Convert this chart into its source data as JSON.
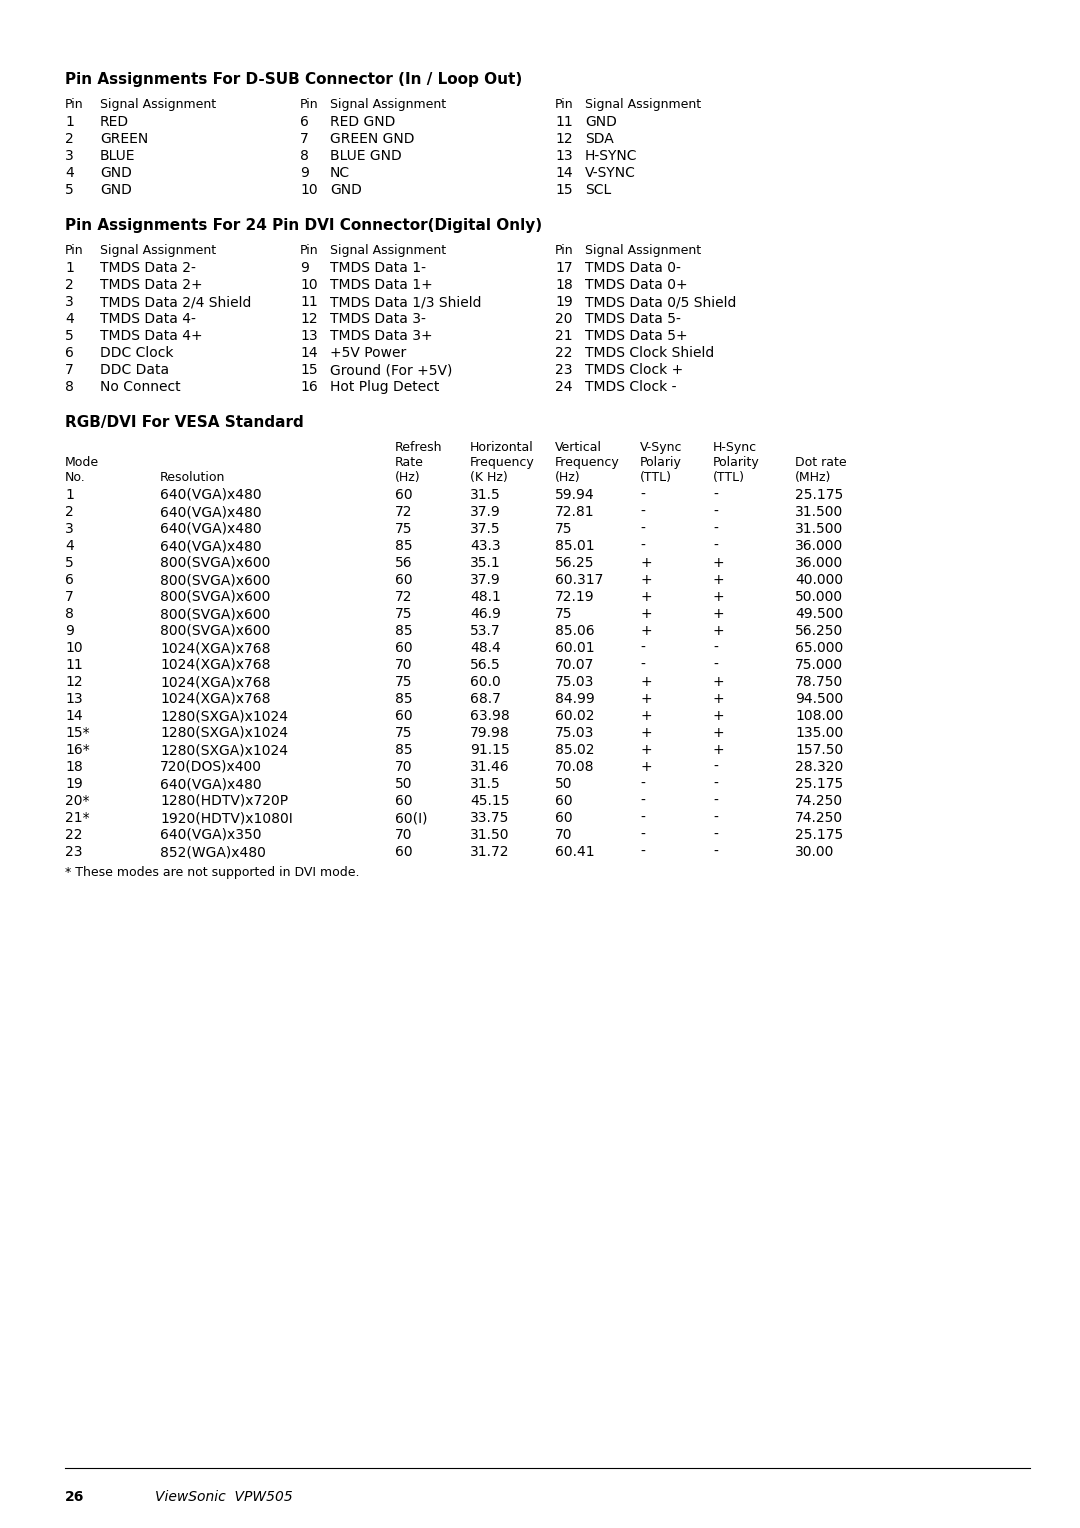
{
  "bg_color": "#ffffff",
  "text_color": "#000000",
  "page_width": 10.8,
  "page_height": 15.28,
  "dpi": 100,
  "section1_title": "Pin Assignments For D-SUB Connector (In / Loop Out)",
  "dsub_rows": [
    [
      "1",
      "RED",
      "6",
      "RED GND",
      "11",
      "GND"
    ],
    [
      "2",
      "GREEN",
      "7",
      "GREEN GND",
      "12",
      "SDA"
    ],
    [
      "3",
      "BLUE",
      "8",
      "BLUE GND",
      "13",
      "H-SYNC"
    ],
    [
      "4",
      "GND",
      "9",
      "NC",
      "14",
      "V-SYNC"
    ],
    [
      "5",
      "GND",
      "10",
      "GND",
      "15",
      "SCL"
    ]
  ],
  "section2_title": "Pin Assignments For 24 Pin DVI Connector(Digital Only)",
  "dvi_rows": [
    [
      "1",
      "TMDS Data 2-",
      "9",
      "TMDS Data 1-",
      "17",
      "TMDS Data 0-"
    ],
    [
      "2",
      "TMDS Data 2+",
      "10",
      "TMDS Data 1+",
      "18",
      "TMDS Data 0+"
    ],
    [
      "3",
      "TMDS Data 2/4 Shield",
      "11",
      "TMDS Data 1/3 Shield",
      "19",
      "TMDS Data 0/5 Shield"
    ],
    [
      "4",
      "TMDS Data 4-",
      "12",
      "TMDS Data 3-",
      "20",
      "TMDS Data 5-"
    ],
    [
      "5",
      "TMDS Data 4+",
      "13",
      "TMDS Data 3+",
      "21",
      "TMDS Data 5+"
    ],
    [
      "6",
      "DDC Clock",
      "14",
      "+5V Power",
      "22",
      "TMDS Clock Shield"
    ],
    [
      "7",
      "DDC Data",
      "15",
      "Ground (For +5V)",
      "23",
      "TMDS Clock +"
    ],
    [
      "8",
      "No Connect",
      "16",
      "Hot Plug Detect",
      "24",
      "TMDS Clock -"
    ]
  ],
  "section3_title": "RGB/DVI For VESA Standard",
  "vesa_rows": [
    [
      "1",
      "640(VGA)x480",
      "60",
      "31.5",
      "59.94",
      "-",
      "-",
      "25.175"
    ],
    [
      "2",
      "640(VGA)x480",
      "72",
      "37.9",
      "72.81",
      "-",
      "-",
      "31.500"
    ],
    [
      "3",
      "640(VGA)x480",
      "75",
      "37.5",
      "75",
      "-",
      "-",
      "31.500"
    ],
    [
      "4",
      "640(VGA)x480",
      "85",
      "43.3",
      "85.01",
      "-",
      "-",
      "36.000"
    ],
    [
      "5",
      "800(SVGA)x600",
      "56",
      "35.1",
      "56.25",
      "+",
      "+",
      "36.000"
    ],
    [
      "6",
      "800(SVGA)x600",
      "60",
      "37.9",
      "60.317",
      "+",
      "+",
      "40.000"
    ],
    [
      "7",
      "800(SVGA)x600",
      "72",
      "48.1",
      "72.19",
      "+",
      "+",
      "50.000"
    ],
    [
      "8",
      "800(SVGA)x600",
      "75",
      "46.9",
      "75",
      "+",
      "+",
      "49.500"
    ],
    [
      "9",
      "800(SVGA)x600",
      "85",
      "53.7",
      "85.06",
      "+",
      "+",
      "56.250"
    ],
    [
      "10",
      "1024(XGA)x768",
      "60",
      "48.4",
      "60.01",
      "-",
      "-",
      "65.000"
    ],
    [
      "11",
      "1024(XGA)x768",
      "70",
      "56.5",
      "70.07",
      "-",
      "-",
      "75.000"
    ],
    [
      "12",
      "1024(XGA)x768",
      "75",
      "60.0",
      "75.03",
      "+",
      "+",
      "78.750"
    ],
    [
      "13",
      "1024(XGA)x768",
      "85",
      "68.7",
      "84.99",
      "+",
      "+",
      "94.500"
    ],
    [
      "14",
      "1280(SXGA)x1024",
      "60",
      "63.98",
      "60.02",
      "+",
      "+",
      "108.00"
    ],
    [
      "15*",
      "1280(SXGA)x1024",
      "75",
      "79.98",
      "75.03",
      "+",
      "+",
      "135.00"
    ],
    [
      "16*",
      "1280(SXGA)x1024",
      "85",
      "91.15",
      "85.02",
      "+",
      "+",
      "157.50"
    ],
    [
      "18",
      "720(DOS)x400",
      "70",
      "31.46",
      "70.08",
      "+",
      "-",
      "28.320"
    ],
    [
      "19",
      "640(VGA)x480",
      "50",
      "31.5",
      "50",
      "-",
      "-",
      "25.175"
    ],
    [
      "20*",
      "1280(HDTV)x720P",
      "60",
      "45.15",
      "60",
      "-",
      "-",
      "74.250"
    ],
    [
      "21*",
      "1920(HDTV)x1080I",
      "60(I)",
      "33.75",
      "60",
      "-",
      "-",
      "74.250"
    ],
    [
      "22",
      "640(VGA)x350",
      "70",
      "31.50",
      "70",
      "-",
      "-",
      "25.175"
    ],
    [
      "23",
      "852(WGA)x480",
      "60",
      "31.72",
      "60.41",
      "-",
      "-",
      "30.00"
    ]
  ],
  "vesa_footnote": "* These modes are not supported in DVI mode.",
  "footer_page": "26",
  "footer_brand": "ViewSonic  VPW505"
}
